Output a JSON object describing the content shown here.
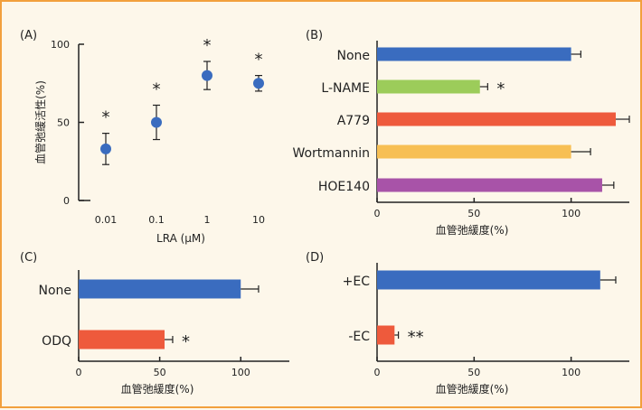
{
  "colors": {
    "frame": "#f2a03d",
    "background": "#fdf7ea",
    "blue": "#3a6cbf",
    "green": "#9ccc5a",
    "red": "#ee5a3c",
    "yellow": "#f7bf54",
    "purple": "#a853a8",
    "axis": "#222222"
  },
  "chart_data": [
    {
      "panel": "(A)",
      "type": "scatter",
      "xlabel": "LRA (μM)",
      "ylabel": "血管弛緩活性(%)",
      "x_scale": "log",
      "x_ticks": [
        "0.01",
        "0.1",
        "1",
        "10"
      ],
      "y_ticks": [
        "0",
        "50",
        "100"
      ],
      "ylim": [
        0,
        100
      ],
      "points": [
        {
          "x": 0.01,
          "y": 33,
          "err": 10,
          "mark": "*"
        },
        {
          "x": 0.1,
          "y": 50,
          "err": 11,
          "mark": "*"
        },
        {
          "x": 1,
          "y": 80,
          "err": 9,
          "mark": "*"
        },
        {
          "x": 10,
          "y": 75,
          "err": 5,
          "mark": "*"
        }
      ]
    },
    {
      "panel": "(B)",
      "type": "bar",
      "orientation": "horizontal",
      "xlabel": "血管弛緩度(%)",
      "x_ticks": [
        "0",
        "50",
        "100"
      ],
      "xlim": [
        0,
        130
      ],
      "categories": [
        "None",
        "L-NAME",
        "A779",
        "Wortmannin",
        "HOE140"
      ],
      "values": [
        100,
        53,
        123,
        100,
        116
      ],
      "errors": [
        5,
        4,
        7,
        10,
        6
      ],
      "marks": [
        "",
        "*",
        "",
        "",
        ""
      ],
      "bar_colors": [
        "#3a6cbf",
        "#9ccc5a",
        "#ee5a3c",
        "#f7bf54",
        "#a853a8"
      ]
    },
    {
      "panel": "(C)",
      "type": "bar",
      "orientation": "horizontal",
      "xlabel": "血管弛緩度(%)",
      "x_ticks": [
        "0",
        "50",
        "100"
      ],
      "xlim": [
        0,
        130
      ],
      "categories": [
        "None",
        "ODQ"
      ],
      "values": [
        100,
        53
      ],
      "errors": [
        11,
        5
      ],
      "marks": [
        "",
        "*"
      ],
      "bar_colors": [
        "#3a6cbf",
        "#ee5a3c"
      ]
    },
    {
      "panel": "(D)",
      "type": "bar",
      "orientation": "horizontal",
      "xlabel": "血管弛緩度(%)",
      "x_ticks": [
        "0",
        "50",
        "100"
      ],
      "xlim": [
        0,
        130
      ],
      "categories": [
        "+EC",
        "-EC"
      ],
      "values": [
        115,
        9
      ],
      "errors": [
        8,
        2
      ],
      "marks": [
        "",
        "**"
      ],
      "bar_colors": [
        "#3a6cbf",
        "#ee5a3c"
      ]
    }
  ]
}
